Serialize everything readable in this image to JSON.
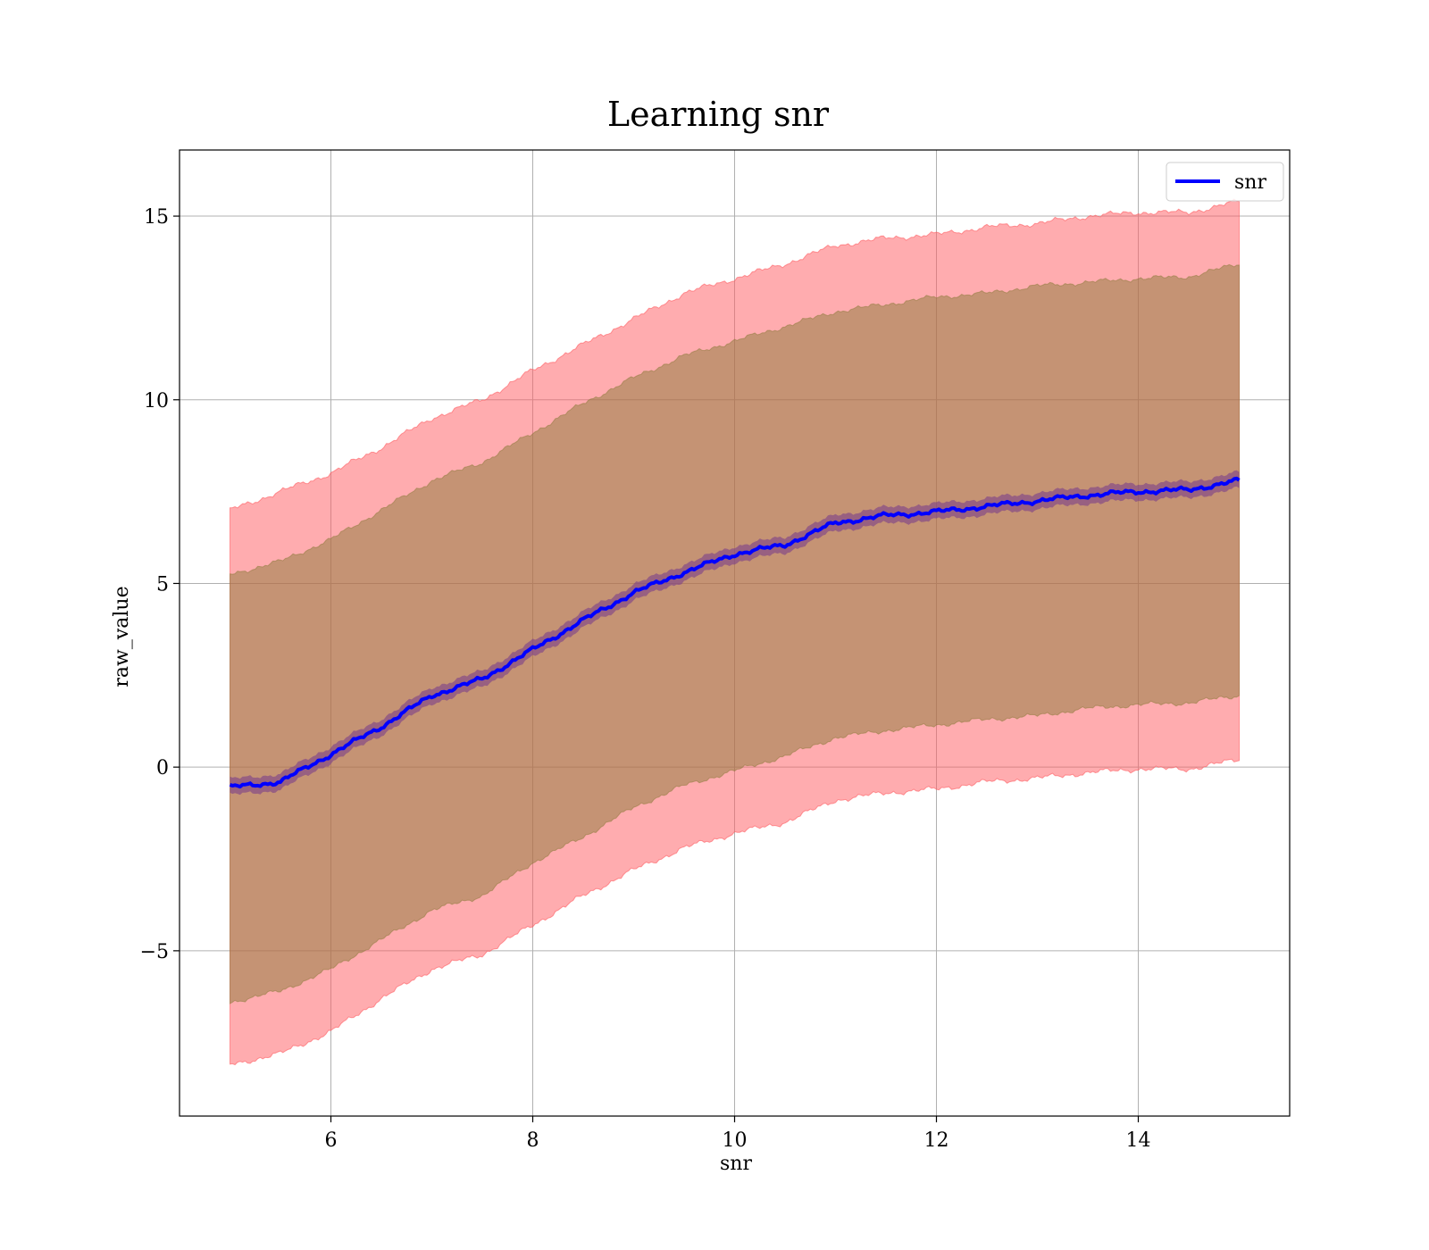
{
  "chart_data": {
    "type": "line",
    "title": "Learning snr",
    "xlabel": "snr",
    "ylabel": "raw_value",
    "xlim": [
      4.5,
      15.5
    ],
    "ylim": [
      -9.5,
      16.8
    ],
    "xticks": [
      6,
      8,
      10,
      12,
      14
    ],
    "yticks": [
      -5,
      0,
      5,
      10,
      15
    ],
    "xtick_labels": [
      "6",
      "8",
      "10",
      "12",
      "14"
    ],
    "ytick_labels": [
      "−5",
      "0",
      "5",
      "10",
      "15"
    ],
    "grid": true,
    "legend": {
      "position": "top-right",
      "entries": [
        "snr"
      ]
    },
    "colors": {
      "line": "#0000ff",
      "outer_band": "#ff5a5f",
      "inner_band": "#8b7a3a",
      "mean_band": "#7a3d8a"
    },
    "series": [
      {
        "name": "snr",
        "x": [
          5.0,
          5.5,
          6.0,
          6.5,
          7.0,
          7.5,
          8.0,
          8.5,
          9.0,
          9.5,
          10.0,
          10.5,
          11.0,
          11.5,
          12.0,
          12.5,
          13.0,
          13.5,
          14.0,
          14.5,
          15.0
        ],
        "y": [
          -0.55,
          -0.4,
          0.35,
          1.1,
          1.95,
          2.4,
          3.2,
          4.0,
          4.75,
          5.3,
          5.8,
          6.05,
          6.65,
          6.85,
          6.95,
          7.1,
          7.25,
          7.4,
          7.5,
          7.55,
          7.8
        ],
        "outer_upper": [
          7.0,
          7.5,
          8.0,
          8.7,
          9.5,
          10.0,
          10.8,
          11.5,
          12.2,
          12.9,
          13.3,
          13.7,
          14.2,
          14.4,
          14.5,
          14.7,
          14.8,
          15.0,
          15.1,
          15.1,
          15.4
        ],
        "outer_lower": [
          -8.1,
          -7.8,
          -7.2,
          -6.3,
          -5.5,
          -5.1,
          -4.3,
          -3.5,
          -2.8,
          -2.2,
          -1.8,
          -1.5,
          -0.9,
          -0.7,
          -0.6,
          -0.4,
          -0.3,
          -0.15,
          -0.05,
          -0.05,
          0.2
        ],
        "inner_upper": [
          5.25,
          5.6,
          6.2,
          7.0,
          7.8,
          8.3,
          9.1,
          9.9,
          10.6,
          11.2,
          11.6,
          12.0,
          12.4,
          12.6,
          12.8,
          12.9,
          13.1,
          13.2,
          13.3,
          13.35,
          13.7
        ],
        "inner_lower": [
          -6.4,
          -6.1,
          -5.5,
          -4.7,
          -3.9,
          -3.5,
          -2.6,
          -1.9,
          -1.1,
          -0.5,
          -0.1,
          0.3,
          0.8,
          1.0,
          1.15,
          1.3,
          1.4,
          1.6,
          1.7,
          1.75,
          1.95
        ],
        "mean_band_halfwidth": 0.22
      }
    ]
  }
}
